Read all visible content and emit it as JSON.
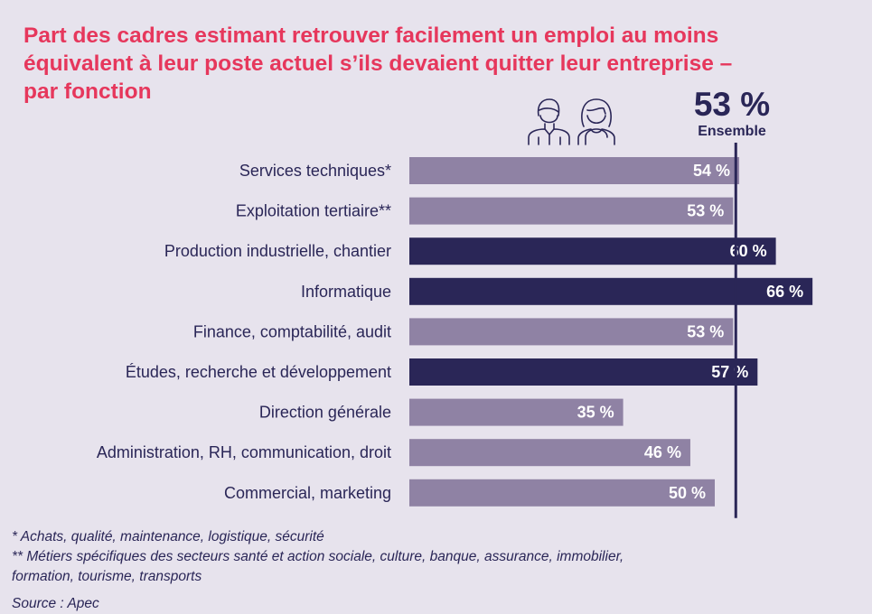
{
  "title_lines": [
    "Part des cadres estimant retrouver facilement un emploi au moins",
    "équivalent à leur poste actuel s’ils devaient quitter leur entreprise –",
    "par fonction"
  ],
  "overall": {
    "value": "53 %",
    "label": "Ensemble"
  },
  "colors": {
    "title": "#e6375c",
    "light_bar": "#8f82a4",
    "dark_bar": "#2a2657",
    "background": "#e7e3ed",
    "text": "#2a2657"
  },
  "icons": [
    "man-icon",
    "woman-icon"
  ],
  "chart_data": {
    "type": "bar",
    "orientation": "horizontal",
    "categories": [
      "Services techniques*",
      "Exploitation tertiaire**",
      "Production industrielle, chantier",
      "Informatique",
      "Finance, comptabilité, audit",
      "Études, recherche et développement",
      "Direction générale",
      "Administration, RH, communication, droit",
      "Commercial, marketing"
    ],
    "values": [
      54,
      53,
      60,
      66,
      53,
      57,
      35,
      46,
      50
    ],
    "value_labels": [
      "54 %",
      "53 %",
      "60 %",
      "66 %",
      "53 %",
      "57 %",
      "35 %",
      "46 %",
      "50 %"
    ],
    "highlighted": [
      false,
      false,
      true,
      true,
      false,
      true,
      false,
      false,
      false
    ],
    "reference_line": {
      "value": 53
    },
    "xlim": [
      0,
      66
    ]
  },
  "footnotes": [
    "* Achats, qualité, maintenance, logistique, sécurité",
    "** Métiers spécifiques des secteurs santé et action sociale, culture, banque, assurance, immobilier,",
    "formation, tourisme, transports"
  ],
  "source": "Source : Apec"
}
